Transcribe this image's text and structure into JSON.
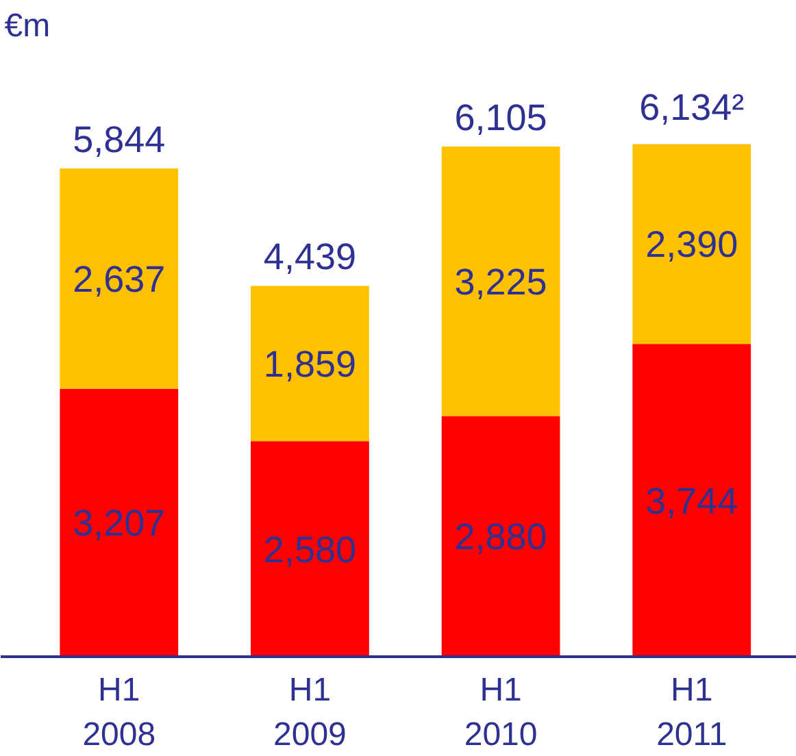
{
  "chart_data": {
    "type": "bar",
    "stacked": true,
    "ylabel": "€m",
    "categories": [
      "H1\n2008",
      "H1\n2009",
      "H1\n2010",
      "H1\n2011"
    ],
    "series": [
      {
        "color": "#ff0000",
        "values": [
          3207,
          2580,
          2880,
          3744
        ],
        "value_labels": [
          "3,207",
          "2,580",
          "2,880",
          "3,744"
        ]
      },
      {
        "color": "#ffc000",
        "values": [
          2637,
          1859,
          3225,
          2390
        ],
        "value_labels": [
          "2,637",
          "1,859",
          "3,225",
          "2,390"
        ]
      }
    ],
    "totals": [
      "5,844",
      "4,439",
      "6,105",
      "6,134²"
    ]
  }
}
